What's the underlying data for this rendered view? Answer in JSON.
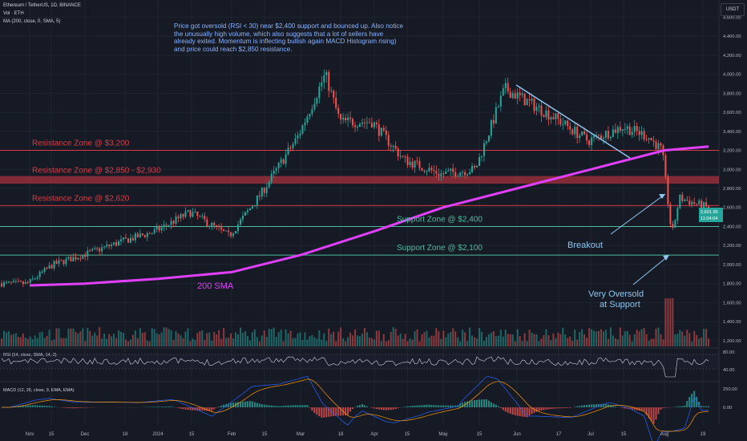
{
  "header": {
    "title": "Ethereum / TetherUS, 1D, BINANCE",
    "vol_label": "Vol · ETH",
    "ma_label": "MA (200, close, 0, SMA, 5)",
    "currency_badge": "USDT"
  },
  "annotation_note": "Price got oversold (RSI < 30) near $2,400 support and bounced up. Also notice the unusually high volume, which also suggests that a lot of sellers have already exited. Momentum is inflecting bullish again MACD Histogram rising) and price could reach $2,850 resistance.",
  "zones": [
    {
      "label": "Resistance Zone @ $3,200",
      "kind": "resistance",
      "from": 3200,
      "to": 3200
    },
    {
      "label": "Resistance Zone @ $2,850 - $2,930",
      "kind": "resistance",
      "from": 2850,
      "to": 2930
    },
    {
      "label": "Resistance Zone @ $2,620",
      "kind": "resistance",
      "from": 2620,
      "to": 2620
    },
    {
      "label": "Support Zone @ $2,400",
      "kind": "support",
      "from": 2400,
      "to": 2400
    },
    {
      "label": "Support Zone @ $2,100",
      "kind": "support",
      "from": 2100,
      "to": 2100
    }
  ],
  "callouts": {
    "sma": "200 SMA",
    "breakout": "Breakout",
    "oversold_1": "Very Oversold",
    "oversold_2": "at Support"
  },
  "price_badge": {
    "price": "2,601.95",
    "countdown": "11:04:04"
  },
  "colors": {
    "background": "#161a25",
    "up": "#26a69a",
    "down": "#ef5350",
    "sma": "#e040fb",
    "resistance": "#d83b44",
    "support": "#4dbb9a",
    "trendline": "#8fc5ee",
    "note_text": "#8ab4ff",
    "macd_line": "#2962ff",
    "signal_line": "#ff9800",
    "rsi_line": "#d1d4dc"
  },
  "chart_data": {
    "type": "line",
    "title": "Ethereum / TetherUS, 1D, BINANCE",
    "x_tick_labels": [
      "Nov",
      "15",
      "Dec",
      "18",
      "2024",
      "15",
      "Feb",
      "15",
      "Mar",
      "18",
      "Apr",
      "15",
      "May",
      "15",
      "Jun",
      "17",
      "Jul",
      "15",
      "Aug",
      "19"
    ],
    "y_tick_labels": [
      "4,600.00",
      "4,400.00",
      "4,200.00",
      "4,000.00",
      "3,800.00",
      "3,600.00",
      "3,400.00",
      "3,200.00",
      "3,000.00",
      "2,800.00",
      "2,600.00",
      "2,400.00",
      "2,200.00",
      "2,000.00",
      "1,800.00",
      "1,600.00",
      "1,400.00",
      "1,200.00"
    ],
    "ylim": [
      1140,
      4780
    ],
    "series": [
      {
        "name": "ETH/USDT",
        "x": [
          "Nov 1",
          "Nov 15",
          "Dec 1",
          "Dec 18",
          "Jan 1",
          "Jan 15",
          "Feb 1",
          "Feb 15",
          "Mar 1",
          "Mar 12",
          "Mar 18",
          "Apr 1",
          "Apr 15",
          "May 1",
          "May 15",
          "May 27",
          "Jun 17",
          "Jul 1",
          "Jul 15",
          "Jul 25",
          "Aug 1",
          "Aug 5",
          "Aug 8",
          "Aug 19"
        ],
        "values": [
          1800,
          2000,
          2100,
          2250,
          2350,
          2550,
          2300,
          2750,
          3350,
          4000,
          3500,
          3500,
          3100,
          2950,
          3000,
          3850,
          3550,
          3300,
          3450,
          3350,
          3200,
          2300,
          2700,
          2601.95
        ]
      },
      {
        "name": "MA (200, close, 0, SMA, 5)",
        "x": [
          "Nov 1",
          "Dec 1",
          "Jan 1",
          "Feb 1",
          "Mar 1",
          "Apr 1",
          "May 1",
          "Jun 1",
          "Jul 1",
          "Aug 1",
          "Aug 19"
        ],
        "values": [
          1780,
          1800,
          1850,
          1920,
          2100,
          2350,
          2600,
          2800,
          3000,
          3200,
          3240
        ]
      }
    ],
    "panes": {
      "rsi": {
        "label": "RSI (14, close, SMA, 14, 2)",
        "ticks": [
          "80.00",
          "40.00"
        ]
      },
      "macd": {
        "label": "MACD (12, 26, close, 9, EMA, EMA)",
        "ticks": [
          "250.00",
          "0.00"
        ]
      }
    }
  }
}
